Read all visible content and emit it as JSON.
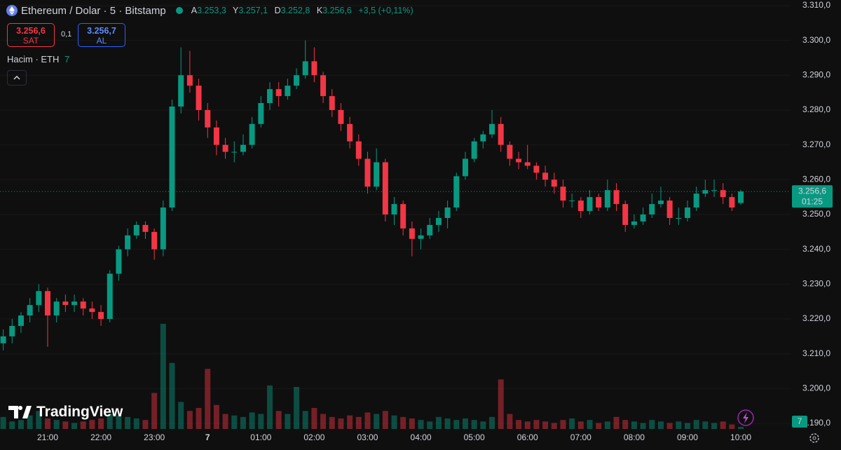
{
  "header": {
    "title": "Ethereum / Dolar · 5 · Bitstamp",
    "ohlc": [
      {
        "key": "A",
        "label": "3.253,3"
      },
      {
        "key": "Y",
        "label": "3.257,1"
      },
      {
        "key": "D",
        "label": "3.252,8"
      },
      {
        "key": "K",
        "label": "3.256,6"
      }
    ],
    "change": "+3,5 (+0,11%)"
  },
  "trade": {
    "sell_price": "3.256,6",
    "sell": "SAT",
    "spread": "0,1",
    "buy_price": "3.256,7",
    "buy": "AL"
  },
  "volume_label": "Hacim · ETH",
  "price_tag": {
    "price": "3.256,6",
    "countdown": "01:25"
  },
  "logo": "TradingView",
  "chart_data": {
    "type": "candlestick",
    "up_color": "#089981",
    "down_color": "#f23645",
    "grid": true,
    "ylim": [
      3188,
      3311.6
    ],
    "yticks": [
      {
        "value": 3190,
        "label": "3.190,0"
      },
      {
        "value": 3200,
        "label": "3.200,0"
      },
      {
        "value": 3210,
        "label": "3.210,0"
      },
      {
        "value": 3220,
        "label": "3.220,0"
      },
      {
        "value": 3230,
        "label": "3.230,0"
      },
      {
        "value": 3240,
        "label": "3.240,0"
      },
      {
        "value": 3250,
        "label": "3.250,0"
      },
      {
        "value": 3260,
        "label": "3.260,0"
      },
      {
        "value": 3270,
        "label": "3.270,0"
      },
      {
        "value": 3280,
        "label": "3.280,0"
      },
      {
        "value": 3290,
        "label": "3.290,0"
      },
      {
        "value": 3300,
        "label": "3.300,0"
      },
      {
        "value": 3310,
        "label": "3.310,0"
      }
    ],
    "categories": [
      null,
      null,
      null,
      null,
      null,
      "21:00",
      null,
      null,
      null,
      null,
      null,
      "22:00",
      null,
      null,
      null,
      null,
      null,
      "23:00",
      null,
      null,
      null,
      null,
      null,
      "7",
      null,
      null,
      null,
      null,
      null,
      "01:00",
      null,
      null,
      null,
      null,
      null,
      "02:00",
      null,
      null,
      null,
      null,
      null,
      "03:00",
      null,
      null,
      null,
      null,
      null,
      "04:00",
      null,
      null,
      null,
      null,
      null,
      "05:00",
      null,
      null,
      null,
      null,
      null,
      "06:00",
      null,
      null,
      null,
      null,
      null,
      "07:00",
      null,
      null,
      null,
      null,
      null,
      "08:00",
      null,
      null,
      null,
      null,
      null,
      "09:00",
      null,
      null,
      null,
      null,
      null,
      "10:00"
    ],
    "ohlc": [
      [
        3213,
        3217,
        3211,
        3215
      ],
      [
        3215,
        3220,
        3213,
        3218
      ],
      [
        3218,
        3222,
        3216,
        3221
      ],
      [
        3221,
        3226,
        3219,
        3224
      ],
      [
        3224,
        3230,
        3222,
        3228
      ],
      [
        3228,
        3229,
        3212,
        3221
      ],
      [
        3221,
        3226,
        3219,
        3225
      ],
      [
        3225,
        3227,
        3222,
        3224
      ],
      [
        3224,
        3227,
        3222,
        3225
      ],
      [
        3225,
        3226,
        3221,
        3223
      ],
      [
        3223,
        3225,
        3220,
        3222
      ],
      [
        3222,
        3224,
        3218,
        3220
      ],
      [
        3220,
        3234,
        3219,
        3233
      ],
      [
        3233,
        3241,
        3231,
        3240
      ],
      [
        3240,
        3246,
        3238,
        3244
      ],
      [
        3244,
        3248,
        3243,
        3247
      ],
      [
        3247,
        3248,
        3243,
        3245
      ],
      [
        3245,
        3246,
        3237,
        3240
      ],
      [
        3240,
        3254,
        3238,
        3252
      ],
      [
        3252,
        3283,
        3251,
        3281
      ],
      [
        3281,
        3298,
        3279,
        3290
      ],
      [
        3290,
        3297,
        3285,
        3287
      ],
      [
        3287,
        3289,
        3277,
        3280
      ],
      [
        3280,
        3282,
        3272,
        3275
      ],
      [
        3275,
        3277,
        3267,
        3270
      ],
      [
        3270,
        3272,
        3266,
        3268
      ],
      [
        3268,
        3271,
        3265,
        3268
      ],
      [
        3268,
        3273,
        3267,
        3270
      ],
      [
        3270,
        3278,
        3269,
        3276
      ],
      [
        3276,
        3284,
        3275,
        3282
      ],
      [
        3282,
        3288,
        3280,
        3286
      ],
      [
        3286,
        3288,
        3281,
        3284
      ],
      [
        3284,
        3289,
        3283,
        3287
      ],
      [
        3287,
        3292,
        3286,
        3290
      ],
      [
        3290,
        3300,
        3289,
        3294
      ],
      [
        3294,
        3298,
        3288,
        3290
      ],
      [
        3290,
        3291,
        3282,
        3284
      ],
      [
        3284,
        3286,
        3278,
        3280
      ],
      [
        3280,
        3282,
        3274,
        3276
      ],
      [
        3276,
        3278,
        3269,
        3271
      ],
      [
        3271,
        3273,
        3264,
        3266
      ],
      [
        3266,
        3268,
        3256,
        3258
      ],
      [
        3258,
        3269,
        3257,
        3265
      ],
      [
        3265,
        3266,
        3248,
        3250
      ],
      [
        3250,
        3255,
        3247,
        3253
      ],
      [
        3253,
        3254,
        3244,
        3246
      ],
      [
        3246,
        3248,
        3238,
        3243
      ],
      [
        3243,
        3246,
        3240,
        3244
      ],
      [
        3244,
        3249,
        3243,
        3247
      ],
      [
        3247,
        3251,
        3245,
        3249
      ],
      [
        3249,
        3254,
        3246,
        3252
      ],
      [
        3252,
        3262,
        3251,
        3261
      ],
      [
        3261,
        3268,
        3260,
        3266
      ],
      [
        3266,
        3272,
        3265,
        3271
      ],
      [
        3271,
        3274,
        3269,
        3273
      ],
      [
        3273,
        3280,
        3272,
        3276
      ],
      [
        3276,
        3278,
        3268,
        3270
      ],
      [
        3270,
        3271,
        3264,
        3266
      ],
      [
        3266,
        3268,
        3263,
        3265
      ],
      [
        3265,
        3270,
        3263,
        3264
      ],
      [
        3264,
        3265,
        3260,
        3262
      ],
      [
        3262,
        3264,
        3258,
        3260
      ],
      [
        3260,
        3262,
        3256,
        3258
      ],
      [
        3258,
        3260,
        3252,
        3254
      ],
      [
        3254,
        3256,
        3252,
        3254
      ],
      [
        3254,
        3255,
        3249,
        3251
      ],
      [
        3251,
        3257,
        3250,
        3255
      ],
      [
        3255,
        3256,
        3251,
        3252
      ],
      [
        3252,
        3260,
        3251,
        3257
      ],
      [
        3257,
        3259,
        3251,
        3253
      ],
      [
        3253,
        3254,
        3245,
        3247
      ],
      [
        3247,
        3250,
        3246,
        3248
      ],
      [
        3248,
        3252,
        3247,
        3250
      ],
      [
        3250,
        3256,
        3249,
        3253
      ],
      [
        3253,
        3258,
        3252,
        3254
      ],
      [
        3254,
        3255,
        3247,
        3249
      ],
      [
        3249,
        3252,
        3247,
        3249
      ],
      [
        3249,
        3254,
        3248,
        3252
      ],
      [
        3252,
        3258,
        3251,
        3256
      ],
      [
        3256,
        3260,
        3255,
        3257
      ],
      [
        3257,
        3260,
        3255,
        3257
      ],
      [
        3257,
        3259,
        3253,
        3255
      ],
      [
        3255,
        3256,
        3251,
        3252
      ],
      [
        3253.3,
        3257.1,
        3252.8,
        3256.6
      ]
    ],
    "volumes": [
      40,
      25,
      30,
      45,
      60,
      35,
      30,
      25,
      20,
      25,
      30,
      35,
      50,
      45,
      40,
      35,
      30,
      120,
      350,
      220,
      90,
      60,
      70,
      200,
      80,
      50,
      45,
      40,
      55,
      50,
      145,
      60,
      50,
      140,
      60,
      70,
      50,
      40,
      35,
      45,
      40,
      55,
      50,
      60,
      45,
      40,
      35,
      30,
      25,
      40,
      35,
      30,
      35,
      30,
      25,
      40,
      165,
      50,
      30,
      25,
      30,
      25,
      20,
      30,
      35,
      25,
      30,
      20,
      25,
      40,
      30,
      25,
      20,
      30,
      25,
      20,
      25,
      20,
      30,
      25,
      20,
      25,
      15,
      7
    ]
  }
}
